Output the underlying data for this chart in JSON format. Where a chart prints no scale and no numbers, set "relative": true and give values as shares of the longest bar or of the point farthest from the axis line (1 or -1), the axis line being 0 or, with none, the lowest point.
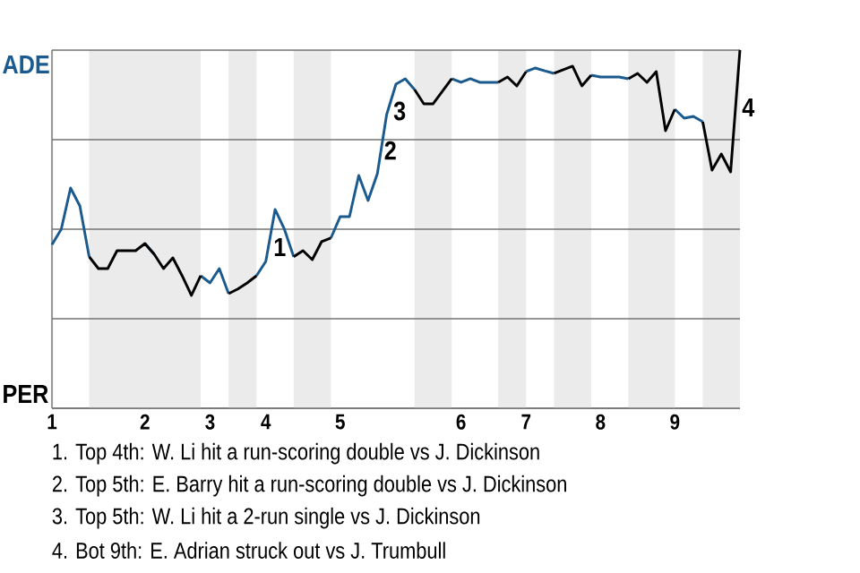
{
  "chart_data": {
    "type": "line",
    "relative": true,
    "grid": "y",
    "categories": [
      "1",
      null,
      null,
      null,
      null,
      null,
      null,
      null,
      null,
      null,
      "2",
      null,
      null,
      null,
      null,
      null,
      null,
      "3",
      null,
      null,
      null,
      null,
      null,
      "4",
      null,
      null,
      null,
      null,
      null,
      null,
      null,
      "5",
      null,
      null,
      null,
      null,
      null,
      null,
      null,
      null,
      null,
      null,
      null,
      null,
      "6",
      null,
      null,
      null,
      null,
      null,
      null,
      "7",
      null,
      null,
      null,
      null,
      null,
      null,
      null,
      "8",
      null,
      null,
      null,
      null,
      null,
      null,
      null,
      "9",
      null,
      null,
      null,
      null,
      null,
      null,
      null
    ],
    "series": [
      {
        "color": "#1a5a8e",
        "values": [
          0.457,
          0.5,
          0.615,
          0.565,
          0.423,
          null,
          null,
          null,
          null,
          null,
          0.46,
          0.43,
          null,
          null,
          null,
          null,
          0.37,
          0.35,
          0.39,
          0.32,
          null,
          null,
          0.37,
          0.41,
          0.555,
          0.5,
          0.423,
          null,
          null,
          null,
          0.475,
          0.535,
          0.535,
          0.65,
          0.58,
          0.655,
          0.82,
          0.905,
          0.92,
          0.89,
          null,
          null,
          null,
          0.92,
          0.91,
          0.92,
          0.91,
          0.91,
          0.91,
          null,
          null,
          0.94,
          0.95,
          0.942,
          0.935,
          null,
          null,
          null,
          0.93,
          0.925,
          0.925,
          0.925,
          0.92,
          null,
          null,
          null,
          null,
          0.835,
          0.81,
          0.815,
          0.8,
          null,
          null,
          null,
          null
        ]
      },
      {
        "color": "#000000",
        "values": [
          null,
          null,
          null,
          null,
          0.423,
          0.39,
          0.39,
          0.44,
          0.44,
          0.44,
          0.46,
          0.43,
          0.39,
          0.42,
          0.37,
          0.315,
          0.37,
          null,
          null,
          0.32,
          0.333,
          0.35,
          0.37,
          null,
          null,
          null,
          0.423,
          0.44,
          0.415,
          0.465,
          0.475,
          null,
          null,
          null,
          null,
          null,
          null,
          null,
          null,
          0.89,
          0.85,
          0.85,
          0.885,
          0.92,
          null,
          null,
          null,
          null,
          0.91,
          0.925,
          0.9,
          0.94,
          null,
          null,
          0.935,
          0.945,
          0.955,
          0.9,
          0.93,
          null,
          null,
          null,
          0.92,
          0.935,
          0.91,
          0.94,
          0.775,
          0.835,
          null,
          null,
          0.8,
          0.665,
          0.71,
          0.66,
          1.0
        ]
      }
    ],
    "annotations": [
      "1",
      "2",
      "3",
      "4",
      "ADE",
      "PER",
      "1. Top 4th: W. Li hit a run-scoring double vs J. Dickinson",
      "2. Top 5th: E. Barry hit a run-scoring double vs J. Dickinson",
      "3. Top 5th: W. Li hit a 2-run single vs J. Dickinson",
      "4. Bot 9th: E. Adrian struck out vs J. Trumbull"
    ]
  }
}
